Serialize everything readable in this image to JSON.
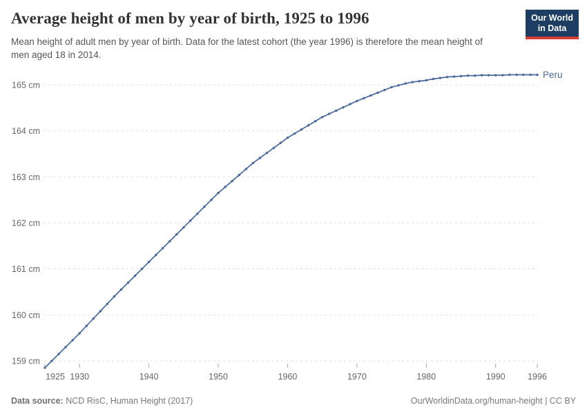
{
  "header": {
    "title": "Average height of men by year of birth, 1925 to 1996",
    "subtitle": "Mean height of adult men by year of birth. Data for the latest cohort (the year 1996) is therefore the mean height of men aged 18 in 2014."
  },
  "logo": {
    "line1": "Our World",
    "line2": "in Data",
    "bg_color": "#1d3d63",
    "stripe_color": "#d93d32"
  },
  "footer": {
    "source_label": "Data source:",
    "source_text": " NCD RisC, Human Height (2017)",
    "link_text": "OurWorldinData.org/human-height | CC BY"
  },
  "chart_data": {
    "type": "line",
    "title": "Average height of men by year of birth, 1925 to 1996",
    "xlabel": "",
    "ylabel": "",
    "y_unit": "cm",
    "xlim": [
      1925,
      1996
    ],
    "ylim": [
      158.8,
      165.4
    ],
    "grid": "horizontal-dashed",
    "legend_position": "end-of-line-label",
    "x_ticks": [
      1925,
      1930,
      1940,
      1950,
      1960,
      1970,
      1980,
      1990,
      1996
    ],
    "y_ticks": [
      159,
      160,
      161,
      162,
      163,
      164,
      165
    ],
    "x": [
      1925,
      1926,
      1927,
      1928,
      1929,
      1930,
      1931,
      1932,
      1933,
      1934,
      1935,
      1936,
      1937,
      1938,
      1939,
      1940,
      1941,
      1942,
      1943,
      1944,
      1945,
      1946,
      1947,
      1948,
      1949,
      1950,
      1951,
      1952,
      1953,
      1954,
      1955,
      1956,
      1957,
      1958,
      1959,
      1960,
      1961,
      1962,
      1963,
      1964,
      1965,
      1966,
      1967,
      1968,
      1969,
      1970,
      1971,
      1972,
      1973,
      1974,
      1975,
      1976,
      1977,
      1978,
      1979,
      1980,
      1981,
      1982,
      1983,
      1984,
      1985,
      1986,
      1987,
      1988,
      1989,
      1990,
      1991,
      1992,
      1993,
      1994,
      1995,
      1996
    ],
    "series": [
      {
        "name": "Peru",
        "color": "#4C6A9C",
        "values": [
          158.85,
          159.0,
          159.15,
          159.3,
          159.45,
          159.6,
          159.76,
          159.92,
          160.08,
          160.24,
          160.4,
          160.55,
          160.7,
          160.85,
          161.0,
          161.15,
          161.3,
          161.45,
          161.6,
          161.75,
          161.9,
          162.05,
          162.2,
          162.35,
          162.5,
          162.65,
          162.78,
          162.91,
          163.04,
          163.17,
          163.3,
          163.41,
          163.52,
          163.63,
          163.74,
          163.85,
          163.94,
          164.03,
          164.12,
          164.21,
          164.3,
          164.37,
          164.44,
          164.51,
          164.58,
          164.65,
          164.71,
          164.77,
          164.83,
          164.89,
          164.95,
          164.99,
          165.03,
          165.06,
          165.08,
          165.1,
          165.13,
          165.15,
          165.17,
          165.18,
          165.19,
          165.2,
          165.2,
          165.21,
          165.21,
          165.21,
          165.21,
          165.22,
          165.22,
          165.22,
          165.22,
          165.22
        ]
      }
    ]
  },
  "theme": {
    "grid_color": "#dedede",
    "axis_text_color": "#666666",
    "tick_color": "#aaaaaa",
    "line_color": "#4C6A9C"
  }
}
